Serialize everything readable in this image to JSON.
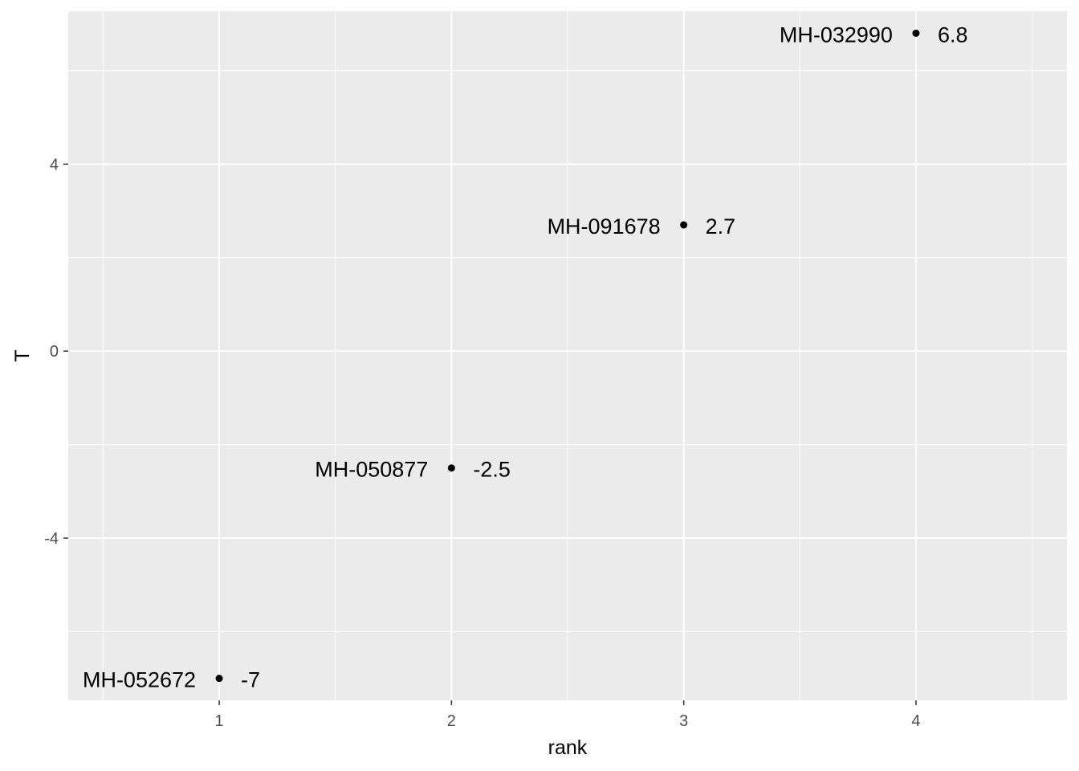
{
  "chart_data": {
    "type": "scatter",
    "title": "",
    "xlabel": "rank",
    "ylabel": "T",
    "xlim": [
      0.35,
      4.65
    ],
    "ylim": [
      -7.47,
      7.27
    ],
    "x_ticks": [
      1,
      2,
      3,
      4
    ],
    "x_tick_labels": [
      "1",
      "2",
      "3",
      "4"
    ],
    "y_ticks": [
      -4,
      0,
      4
    ],
    "y_tick_labels": [
      "-4",
      "0",
      "4"
    ],
    "grid": true,
    "theme": "ggplot2 grey",
    "colors": {
      "panel": "#ebebeb",
      "grid": "#ffffff",
      "point": "#000000"
    },
    "points": [
      {
        "x": 1,
        "y": -7.0,
        "name": "MH-052672",
        "value_label": "-7"
      },
      {
        "x": 2,
        "y": -2.5,
        "name": "MH-050877",
        "value_label": "-2.5"
      },
      {
        "x": 3,
        "y": 2.7,
        "name": "MH-091678",
        "value_label": "2.7"
      },
      {
        "x": 4,
        "y": 6.8,
        "name": "MH-032990",
        "value_label": "6.8"
      }
    ]
  }
}
